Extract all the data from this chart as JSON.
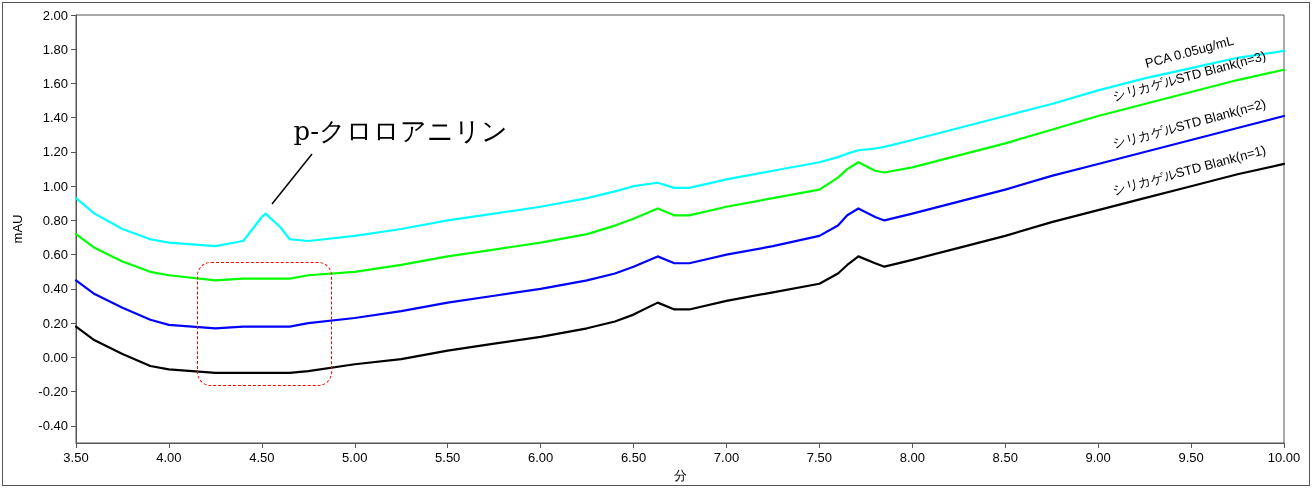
{
  "chart_data": {
    "type": "line",
    "xlabel": "分",
    "ylabel": "mAU",
    "x": [
      3.5,
      3.6,
      3.75,
      3.9,
      4.0,
      4.25,
      4.4,
      4.5,
      4.52,
      4.6,
      4.65,
      4.75,
      5.0,
      5.25,
      5.5,
      5.75,
      6.0,
      6.25,
      6.4,
      6.5,
      6.63,
      6.72,
      6.8,
      7.0,
      7.25,
      7.5,
      7.6,
      7.65,
      7.71,
      7.8,
      7.85,
      8.0,
      8.25,
      8.5,
      8.75,
      9.0,
      9.25,
      9.5,
      9.75,
      10.0
    ],
    "series": [
      {
        "name": "シリカゲルSTD Blank(n=1)",
        "color": "#000000",
        "values": [
          0.18,
          0.1,
          0.02,
          -0.05,
          -0.07,
          -0.09,
          -0.09,
          -0.09,
          -0.09,
          -0.09,
          -0.09,
          -0.08,
          -0.04,
          -0.01,
          0.04,
          0.08,
          0.12,
          0.17,
          0.21,
          0.25,
          0.32,
          0.28,
          0.28,
          0.33,
          0.38,
          0.43,
          0.49,
          0.54,
          0.59,
          0.55,
          0.53,
          0.57,
          0.64,
          0.71,
          0.79,
          0.86,
          0.93,
          1.0,
          1.07,
          1.13
        ]
      },
      {
        "name": "シリカゲルSTD Blank(n=2)",
        "color": "#0000ff",
        "values": [
          0.45,
          0.37,
          0.29,
          0.22,
          0.19,
          0.17,
          0.18,
          0.18,
          0.18,
          0.18,
          0.18,
          0.2,
          0.23,
          0.27,
          0.32,
          0.36,
          0.4,
          0.45,
          0.49,
          0.53,
          0.59,
          0.55,
          0.55,
          0.6,
          0.65,
          0.71,
          0.77,
          0.83,
          0.87,
          0.82,
          0.8,
          0.84,
          0.91,
          0.98,
          1.06,
          1.13,
          1.2,
          1.27,
          1.34,
          1.41
        ]
      },
      {
        "name": "シリカゲルSTD Blank(n=3)",
        "color": "#00ff00",
        "values": [
          0.72,
          0.64,
          0.56,
          0.5,
          0.48,
          0.45,
          0.46,
          0.46,
          0.46,
          0.46,
          0.46,
          0.48,
          0.5,
          0.54,
          0.59,
          0.63,
          0.67,
          0.72,
          0.77,
          0.81,
          0.87,
          0.83,
          0.83,
          0.88,
          0.93,
          0.98,
          1.05,
          1.1,
          1.14,
          1.09,
          1.08,
          1.11,
          1.18,
          1.25,
          1.33,
          1.41,
          1.48,
          1.55,
          1.62,
          1.68
        ]
      },
      {
        "name": "PCA 0.05ug/mL",
        "color": "#00ffff",
        "values": [
          0.93,
          0.84,
          0.75,
          0.69,
          0.67,
          0.65,
          0.68,
          0.82,
          0.84,
          0.76,
          0.69,
          0.68,
          0.71,
          0.75,
          0.8,
          0.84,
          0.88,
          0.93,
          0.97,
          1.0,
          1.02,
          0.99,
          0.99,
          1.04,
          1.09,
          1.14,
          1.17,
          1.19,
          1.21,
          1.22,
          1.23,
          1.27,
          1.34,
          1.41,
          1.48,
          1.56,
          1.63,
          1.69,
          1.75,
          1.79
        ]
      }
    ],
    "xlim": [
      3.5,
      10.0
    ],
    "xticks": [
      {
        "value": 3.5,
        "label": "3.50"
      },
      {
        "value": 4.0,
        "label": "4.00"
      },
      {
        "value": 4.5,
        "label": "4.50"
      },
      {
        "value": 5.0,
        "label": "5.00"
      },
      {
        "value": 5.5,
        "label": "5.50"
      },
      {
        "value": 6.0,
        "label": "6.00"
      },
      {
        "value": 6.5,
        "label": "6.50"
      },
      {
        "value": 7.0,
        "label": "7.00"
      },
      {
        "value": 7.5,
        "label": "7.50"
      },
      {
        "value": 8.0,
        "label": "8.00"
      },
      {
        "value": 8.5,
        "label": "8.50"
      },
      {
        "value": 9.0,
        "label": "9.00"
      },
      {
        "value": 9.5,
        "label": "9.50"
      },
      {
        "value": 10.0,
        "label": "10.00"
      }
    ],
    "ylim": [
      -0.5,
      2.0
    ],
    "yticks": [
      {
        "value": -0.4,
        "label": "-0.40"
      },
      {
        "value": -0.2,
        "label": "-0.20"
      },
      {
        "value": 0,
        "label": "0.00"
      },
      {
        "value": 0.2,
        "label": "0.20"
      },
      {
        "value": 0.4,
        "label": "0.40"
      },
      {
        "value": 0.6,
        "label": "0.60"
      },
      {
        "value": 0.8,
        "label": "0.80"
      },
      {
        "value": 1.0,
        "label": "1.00"
      },
      {
        "value": 1.2,
        "label": "1.20"
      },
      {
        "value": 1.4,
        "label": "1.40"
      },
      {
        "value": 1.6,
        "label": "1.60"
      },
      {
        "value": 1.8,
        "label": "1.80"
      },
      {
        "value": 2.0,
        "label": "2.00"
      }
    ],
    "annotations": [
      {
        "text": "p-クロロアニリン",
        "x": 4.52,
        "y": 0.84
      }
    ],
    "grid": false,
    "legend": false,
    "marker": "none",
    "line_style": "solid"
  }
}
